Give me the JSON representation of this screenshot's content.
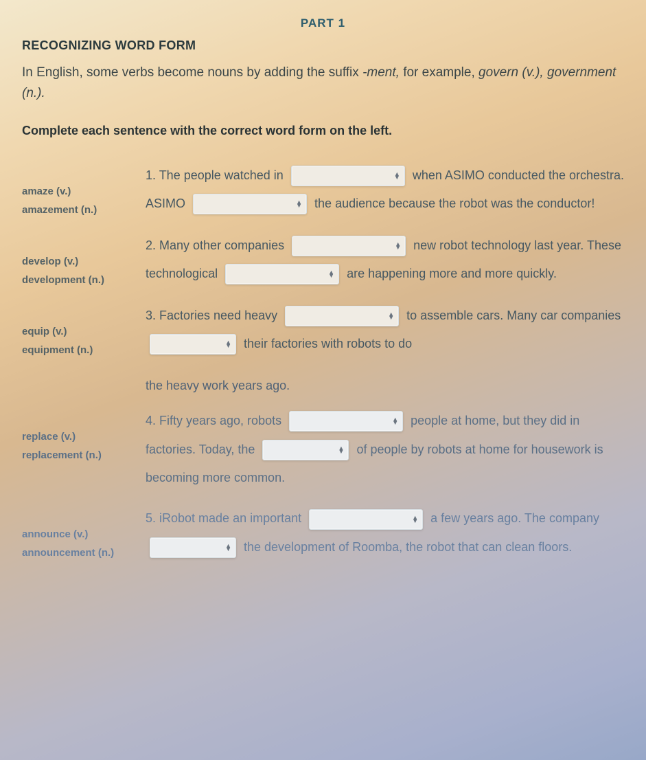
{
  "header": {
    "part_label": "PART 1",
    "section_title": "RECOGNIZING WORD FORM"
  },
  "intro": {
    "pre": "In English, some verbs become nouns by adding the suffix ",
    "suffix": "-ment,",
    "post1": " for example, ",
    "ex_verb": "govern (v.),",
    "ex_noun": " government (n.).",
    "full_plain": "In English, some verbs become nouns by adding the suffix -ment, for example, govern (v.), government (n.)."
  },
  "instruction": "Complete each sentence with the correct word form on the left.",
  "dropdown_widths": {
    "wide": 166,
    "narrow": 126
  },
  "items": [
    {
      "words": [
        "amaze (v.)",
        "amazement (n.)"
      ],
      "segments": [
        {
          "type": "text",
          "val": "1. The people watched in"
        },
        {
          "type": "dd",
          "w": "wide"
        },
        {
          "type": "text",
          "val": "when ASIMO conducted the orchestra. ASIMO"
        },
        {
          "type": "dd",
          "w": "wide"
        },
        {
          "type": "text",
          "val": "the audience because the robot was the conductor!"
        }
      ]
    },
    {
      "words": [
        "develop (v.)",
        "development (n.)"
      ],
      "segments": [
        {
          "type": "text",
          "val": "2. Many other companies"
        },
        {
          "type": "dd",
          "w": "wide"
        },
        {
          "type": "text",
          "val": "new robot technology last year. These technological"
        },
        {
          "type": "dd",
          "w": "wide"
        },
        {
          "type": "text",
          "val": "are happening more and more quickly."
        }
      ]
    },
    {
      "words": [
        "equip (v.)",
        "equipment (n.)"
      ],
      "segments": [
        {
          "type": "text",
          "val": "3. Factories need heavy"
        },
        {
          "type": "dd",
          "w": "wide"
        },
        {
          "type": "text",
          "val": "to assemble cars. Many car companies"
        },
        {
          "type": "dd",
          "w": "narrow"
        },
        {
          "type": "text",
          "val": "their factories with robots to do"
        }
      ],
      "trailing": "the heavy work years ago."
    },
    {
      "words": [
        "replace (v.)",
        "replacement (n.)"
      ],
      "segments": [
        {
          "type": "text",
          "val": "4. Fifty years ago, robots"
        },
        {
          "type": "dd",
          "w": "wide"
        },
        {
          "type": "text",
          "val": "people at home, but they did in factories. Today, the"
        },
        {
          "type": "dd",
          "w": "narrow"
        },
        {
          "type": "text",
          "val": "of people by robots at home for housework is becoming more common."
        }
      ]
    },
    {
      "words": [
        "announce (v.)",
        "announcement (n.)"
      ],
      "segments": [
        {
          "type": "text",
          "val": "5. iRobot made an important"
        },
        {
          "type": "dd",
          "w": "wide"
        },
        {
          "type": "text",
          "val": "a few years ago. The company"
        },
        {
          "type": "dd",
          "w": "narrow"
        },
        {
          "type": "text",
          "val": "the development of Roomba, the robot that can clean floors."
        }
      ]
    }
  ]
}
